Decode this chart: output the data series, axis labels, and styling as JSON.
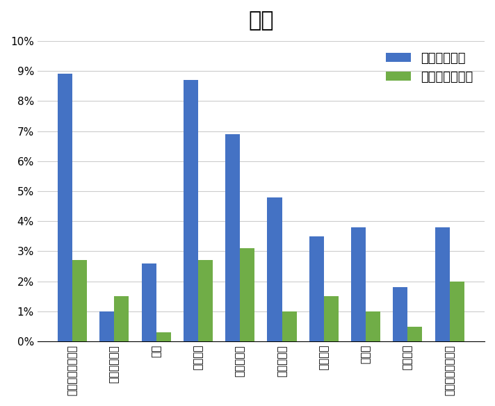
{
  "title": "無理",
  "categories": [
    "錠剤・タブレット",
    "スポットオン",
    "液体",
    "カプセル",
    "目薬・軟膏",
    "粉末・顆粒",
    "ペースト",
    "点耳薬",
    "皮膚軟膏",
    "インシュリン注射"
  ],
  "series1_label": "一般の飼い主",
  "series2_label": "手慣れた飼い主",
  "series1_values": [
    0.089,
    0.01,
    0.026,
    0.087,
    0.069,
    0.048,
    0.035,
    0.038,
    0.018,
    0.038
  ],
  "series2_values": [
    0.027,
    0.015,
    0.003,
    0.027,
    0.031,
    0.01,
    0.015,
    0.01,
    0.005,
    0.02
  ],
  "series1_color": "#4472C4",
  "series2_color": "#70AD47",
  "ylim": [
    0,
    0.1
  ],
  "yticks": [
    0.0,
    0.01,
    0.02,
    0.03,
    0.04,
    0.05,
    0.06,
    0.07,
    0.08,
    0.09,
    0.1
  ],
  "ytick_labels": [
    "0%",
    "1%",
    "2%",
    "3%",
    "4%",
    "5%",
    "6%",
    "7%",
    "8%",
    "9%",
    "10%"
  ],
  "background_color": "#FFFFFF",
  "title_fontsize": 22,
  "legend_fontsize": 13,
  "tick_fontsize": 11,
  "bar_width": 0.35,
  "grid_color": "#CCCCCC"
}
